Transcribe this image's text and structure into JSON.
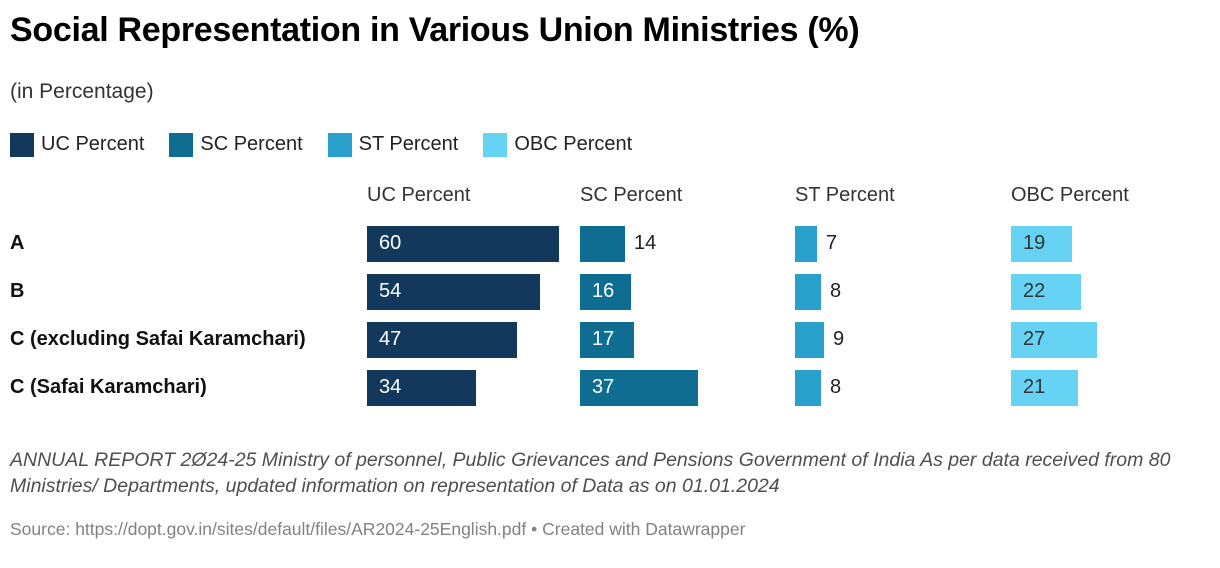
{
  "header": {
    "title": "Social Representation in Various Union Ministries (%)",
    "subtitle": "(in Percentage)"
  },
  "chart_data": {
    "type": "bar",
    "orientation": "horizontal",
    "layout": "split-bars-table",
    "title": "Social Representation in Various Union Ministries (%)",
    "subtitle": "(in Percentage)",
    "categories": [
      "A",
      "B",
      "C (excluding Safai Karamchari)",
      "C (Safai Karamchari)"
    ],
    "series": [
      {
        "name": "UC Percent",
        "color": "#12395B",
        "inside_label_color": "#ffffff",
        "values": [
          60,
          54,
          47,
          34
        ]
      },
      {
        "name": "SC Percent",
        "color": "#0E6D91",
        "inside_label_color": "#ffffff",
        "values": [
          14,
          16,
          17,
          37
        ]
      },
      {
        "name": "ST Percent",
        "color": "#29A0CC",
        "inside_label_color": "#ffffff",
        "values": [
          7,
          8,
          9,
          8
        ]
      },
      {
        "name": "OBC Percent",
        "color": "#66D3F5",
        "inside_label_color": "#333333",
        "values": [
          19,
          22,
          27,
          21
        ]
      }
    ],
    "xlim": [
      0,
      60
    ],
    "grid": false,
    "legend_position": "top",
    "value_labels": "on-bars"
  },
  "footer": {
    "notes": "ANNUAL REPORT 2Ø24-25 Ministry of personnel, Public Grievances and Pensions Government of India As per data received from 80 Ministries/ Departments, updated information on representation of Data as on 01.01.2024",
    "source_label": "Source:",
    "source_url": "https://dopt.gov.in/sites/default/files/AR2024-25English.pdf",
    "separator": "•",
    "credit": "Created with Datawrapper"
  }
}
